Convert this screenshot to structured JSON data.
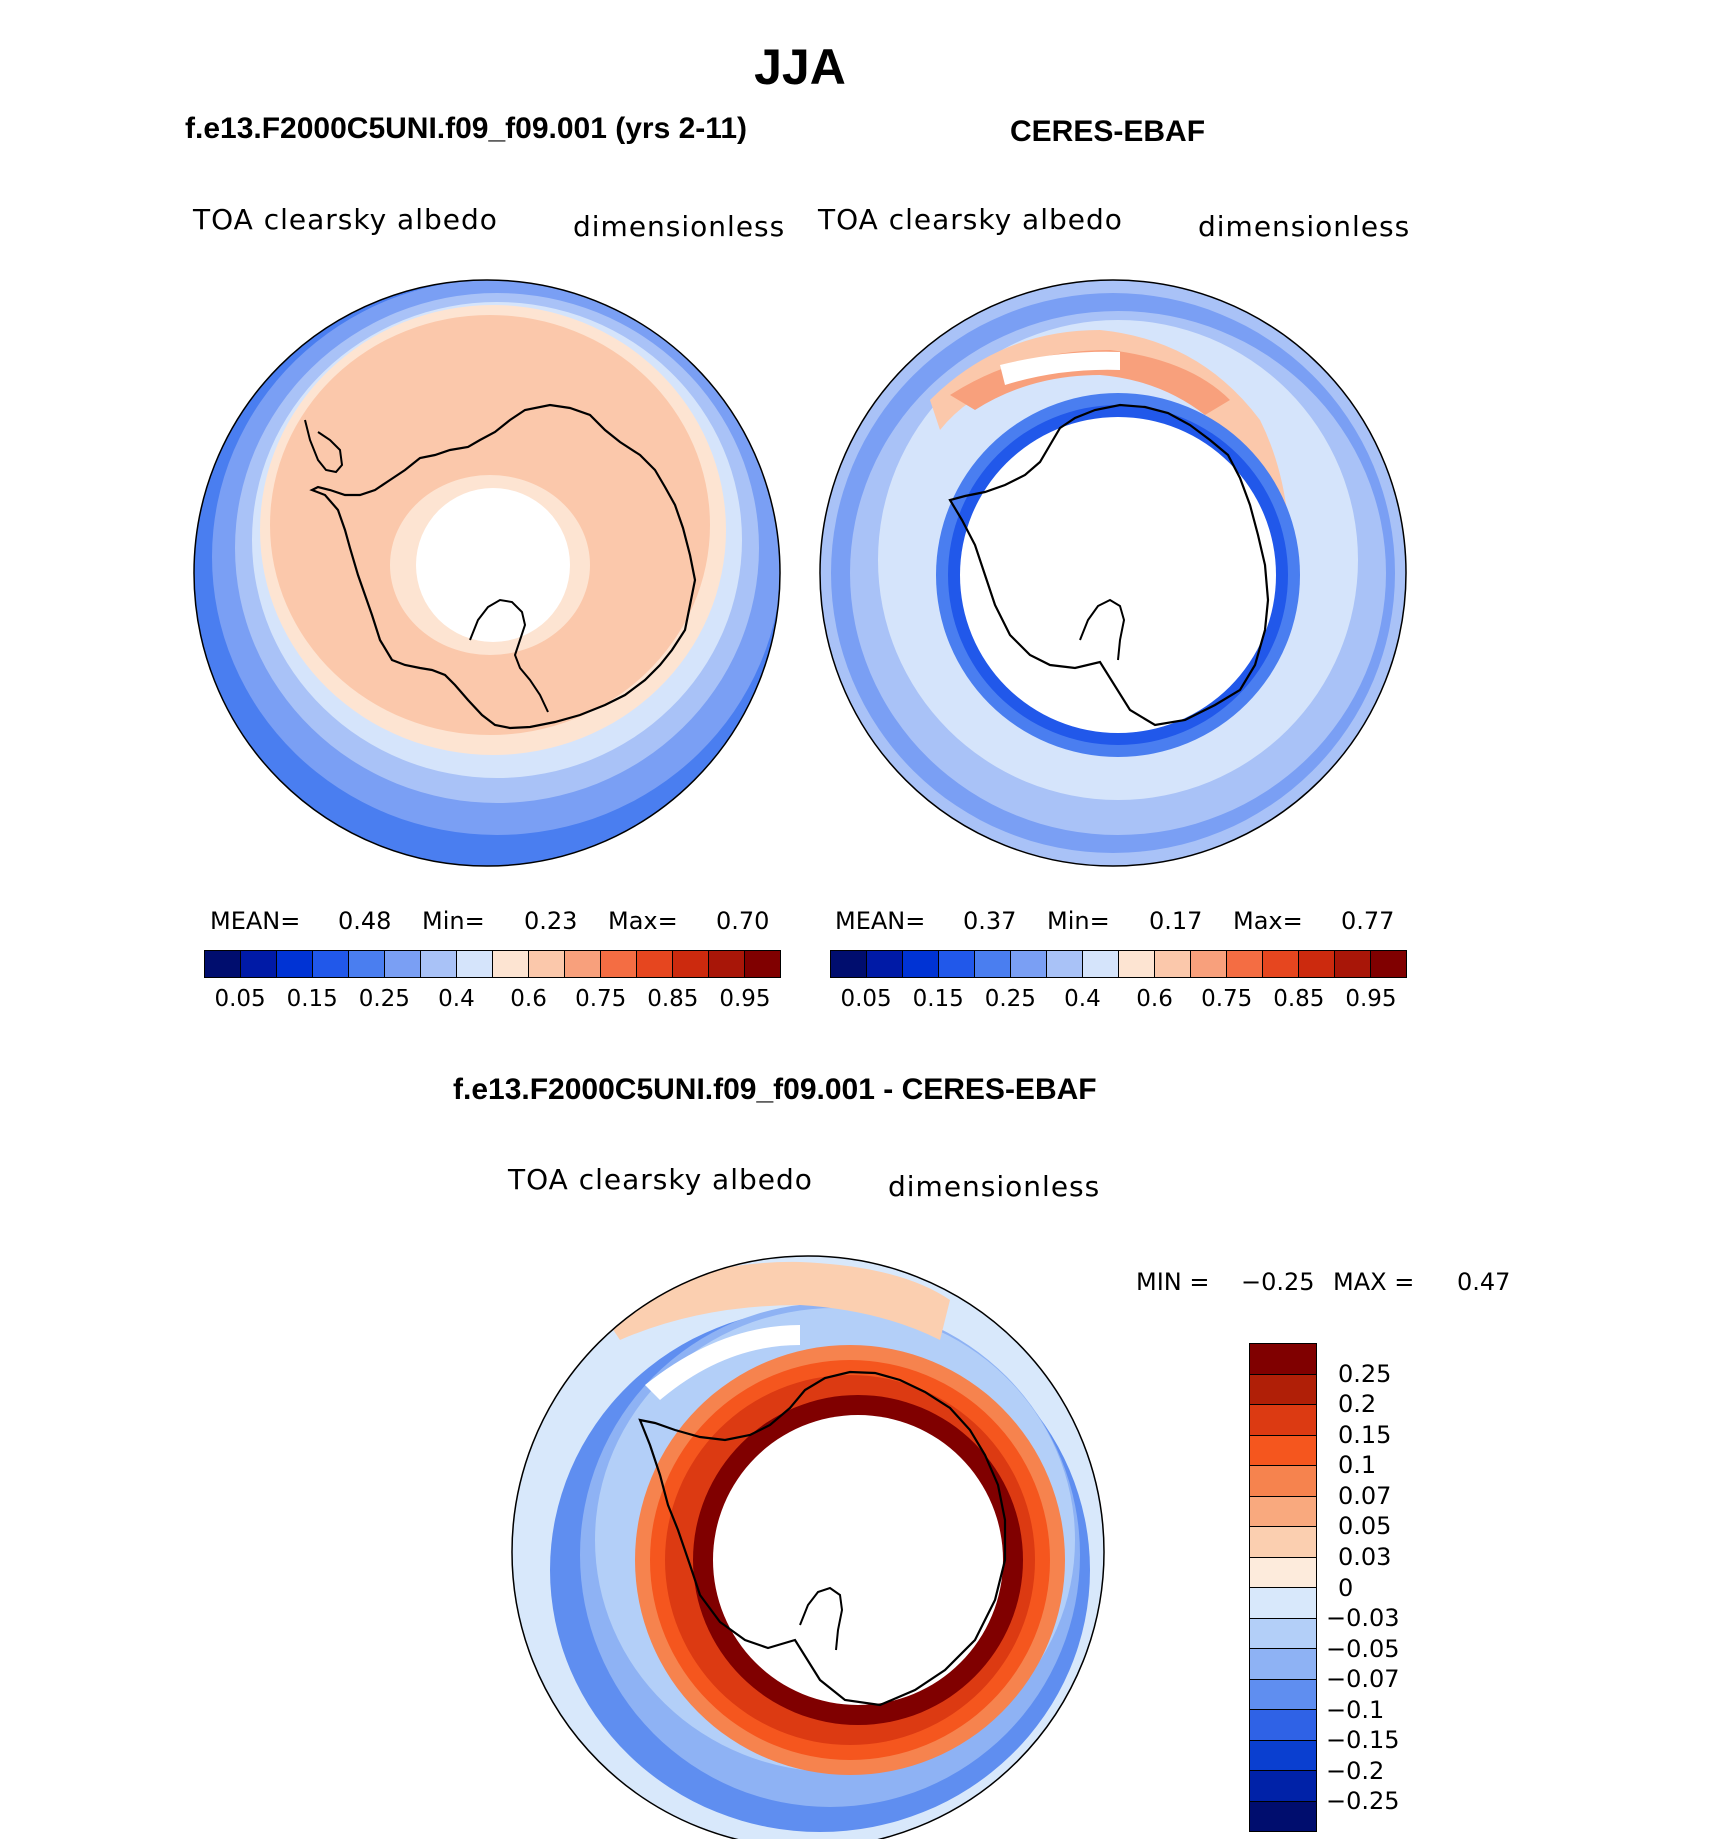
{
  "title": "JJA",
  "panels": [
    {
      "case": "f.e13.F2000C5UNI.f09_f09.001 (yrs 2-11)",
      "variable": "TOA clearsky albedo",
      "units": "dimensionless",
      "stats": {
        "mean_label": "MEAN=",
        "mean": "0.48",
        "min_label": "Min=",
        "min": "0.23",
        "max_label": "Max=",
        "max": "0.70"
      }
    },
    {
      "case": "CERES-EBAF",
      "variable": "TOA clearsky albedo",
      "units": "dimensionless",
      "stats": {
        "mean_label": "MEAN=",
        "mean": "0.37",
        "min_label": "Min=",
        "min": "0.17",
        "max_label": "Max=",
        "max": "0.77"
      }
    }
  ],
  "difference": {
    "case": "f.e13.F2000C5UNI.f09_f09.001 - CERES-EBAF",
    "variable": "TOA clearsky albedo",
    "units": "dimensionless",
    "min_label": "MIN =",
    "min": "−0.25",
    "max_label": "MAX =",
    "max": "0.47"
  },
  "colorbar_horizontal": {
    "labels": [
      "0.05",
      "0.15",
      "0.25",
      "0.4",
      "0.6",
      "0.75",
      "0.85",
      "0.95"
    ],
    "colors": [
      "#000d6e",
      "#001aa6",
      "#0033d4",
      "#2158ea",
      "#4a7ef0",
      "#7a9ff4",
      "#a9c2f7",
      "#d5e4fb",
      "#fde4d2",
      "#fbc8ab",
      "#f8a07c",
      "#f46d43",
      "#e6461f",
      "#cc2a0e",
      "#a81608",
      "#800000"
    ]
  },
  "colorbar_vertical": {
    "labels": [
      "0.25",
      "0.2",
      "0.15",
      "0.1",
      "0.07",
      "0.05",
      "0.03",
      "0",
      "−0.03",
      "−0.05",
      "−0.07",
      "−0.1",
      "−0.15",
      "−0.2",
      "−0.25"
    ],
    "colors": [
      "#800000",
      "#b01f07",
      "#dc3a12",
      "#f5561e",
      "#f6834e",
      "#f9a97e",
      "#fbcfb0",
      "#fdebdc",
      "#d8e8fb",
      "#b3cff8",
      "#8eb2f4",
      "#5f8ef0",
      "#2f62e6",
      "#0a3fd0",
      "#0022a8",
      "#000d6e"
    ]
  },
  "chart_data": {
    "type": "heatmap",
    "title": "JJA",
    "maps": [
      {
        "name": "f.e13.F2000C5UNI.f09_f09.001 (yrs 2-11)",
        "mean": 0.48,
        "min": 0.23,
        "max": 0.7
      },
      {
        "name": "CERES-EBAF",
        "mean": 0.37,
        "min": 0.17,
        "max": 0.77
      },
      {
        "name": "f.e13.F2000C5UNI.f09_f09.001 - CERES-EBAF",
        "min": -0.25,
        "max": 0.47
      }
    ],
    "levels_abs": [
      0.05,
      0.15,
      0.25,
      0.4,
      0.6,
      0.75,
      0.85,
      0.95
    ],
    "levels_diff": [
      -0.25,
      -0.2,
      -0.15,
      -0.1,
      -0.07,
      -0.05,
      -0.03,
      0,
      0.03,
      0.05,
      0.07,
      0.1,
      0.15,
      0.2,
      0.25
    ]
  }
}
